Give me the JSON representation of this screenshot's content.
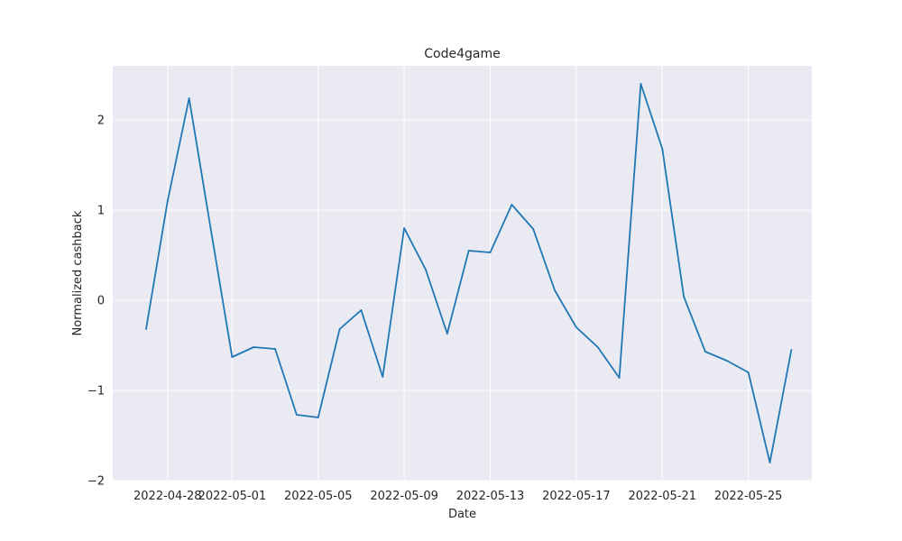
{
  "chart_data": {
    "type": "line",
    "title": "Code4game",
    "xlabel": "Date",
    "ylabel": "Normalized cashback",
    "x_tick_labels": [
      "2022-04-28",
      "2022-05-01",
      "2022-05-05",
      "2022-05-09",
      "2022-05-13",
      "2022-05-17",
      "2022-05-21",
      "2022-05-25"
    ],
    "y_tick_labels": [
      "−2",
      "−1",
      "0",
      "1",
      "2"
    ],
    "x_range": [
      "2022-04-25",
      "2022-05-28"
    ],
    "ylim": [
      -2,
      2.6
    ],
    "grid": true,
    "background_color": "#eaeaf2",
    "series": [
      {
        "color": "#1f77b4",
        "x": [
          "2022-04-27",
          "2022-04-28",
          "2022-04-29",
          "2022-04-30",
          "2022-05-01",
          "2022-05-02",
          "2022-05-03",
          "2022-05-04",
          "2022-05-05",
          "2022-05-06",
          "2022-05-07",
          "2022-05-08",
          "2022-05-09",
          "2022-05-10",
          "2022-05-11",
          "2022-05-12",
          "2022-05-13",
          "2022-05-14",
          "2022-05-15",
          "2022-05-16",
          "2022-05-17",
          "2022-05-18",
          "2022-05-19",
          "2022-05-20",
          "2022-05-21",
          "2022-05-22",
          "2022-05-23",
          "2022-05-24",
          "2022-05-25",
          "2022-05-26",
          "2022-05-27"
        ],
        "values": [
          -0.32,
          1.1,
          2.24,
          0.8,
          -0.63,
          -0.52,
          -0.54,
          -1.27,
          -1.3,
          -0.32,
          -0.11,
          -0.85,
          0.8,
          0.34,
          -0.37,
          0.55,
          0.53,
          1.06,
          0.79,
          0.11,
          -0.3,
          -0.52,
          -0.86,
          2.4,
          1.68,
          0.04,
          -0.57,
          -0.67,
          -0.8,
          -1.8,
          -0.55
        ]
      }
    ]
  }
}
